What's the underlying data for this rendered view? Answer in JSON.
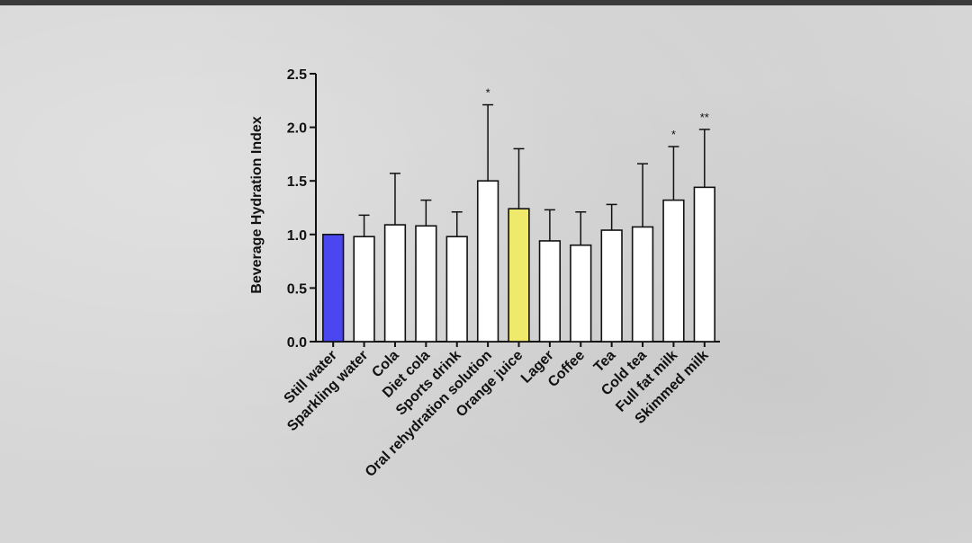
{
  "chart_data": {
    "type": "bar",
    "title": "",
    "xlabel": "",
    "ylabel": "Beverage Hydration Index",
    "ylim": [
      0,
      2.5
    ],
    "yticks": [
      "0.0",
      "0.5",
      "1.0",
      "1.5",
      "2.0",
      "2.5"
    ],
    "grid": false,
    "categories": [
      "Still water",
      "Sparkling water",
      "Cola",
      "Diet cola",
      "Sports drink",
      "Oral rehydration solution",
      "Orange juice",
      "Lager",
      "Coffee",
      "Tea",
      "Cold tea",
      "Full fat milk",
      "Skimmed milk"
    ],
    "values": [
      1.0,
      0.98,
      1.09,
      1.08,
      0.98,
      1.5,
      1.24,
      0.94,
      0.9,
      1.04,
      1.07,
      1.32,
      1.44
    ],
    "error_upper": [
      1.0,
      1.18,
      1.57,
      1.32,
      1.21,
      2.21,
      1.8,
      1.23,
      1.21,
      1.28,
      1.66,
      1.82,
      1.98
    ],
    "annotations": [
      "",
      "",
      "",
      "",
      "",
      "*",
      "",
      "",
      "",
      "",
      "",
      "*",
      "**"
    ],
    "colors": [
      "#4b47f0",
      "#ffffff",
      "#ffffff",
      "#ffffff",
      "#ffffff",
      "#ffffff",
      "#f0ea6c",
      "#ffffff",
      "#ffffff",
      "#ffffff",
      "#ffffff",
      "#ffffff",
      "#ffffff"
    ]
  }
}
